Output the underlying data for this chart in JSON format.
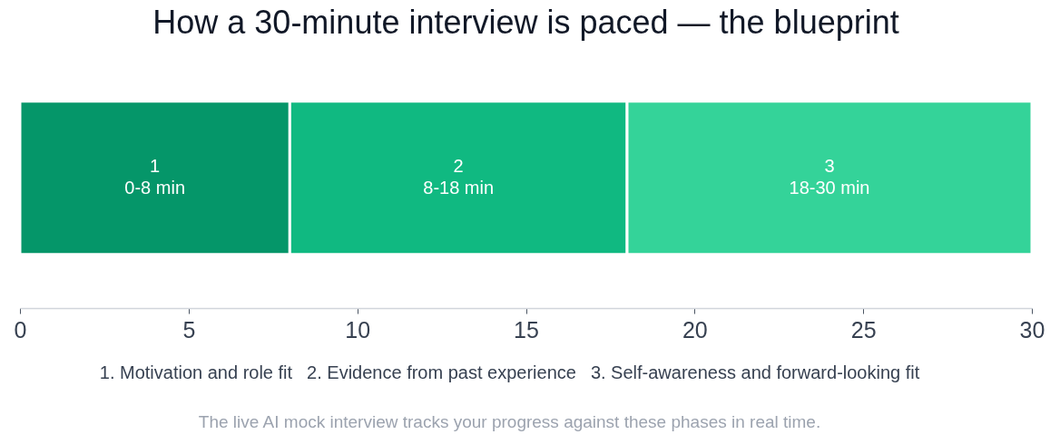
{
  "chart_data": {
    "type": "bar",
    "orientation": "horizontal",
    "stacked": true,
    "title": "How a 30-minute interview is paced — the blueprint",
    "categories": [
      null
    ],
    "series": [
      {
        "name": "1",
        "color": "#059669",
        "values": [
          8
        ],
        "value_labels": [
          "0-8 min"
        ]
      },
      {
        "name": "2",
        "color": "#10b981",
        "values": [
          10
        ],
        "value_labels": [
          "8-18 min"
        ]
      },
      {
        "name": "3",
        "color": "#34d399",
        "values": [
          12
        ],
        "value_labels": [
          "18-30 min"
        ]
      }
    ],
    "xlim": [
      0,
      30
    ],
    "xticks": [
      0,
      5,
      10,
      15,
      20,
      25,
      30
    ],
    "grid": false,
    "legend": false,
    "annotations": [
      "1. Motivation and role fit",
      "2. Evidence from past experience",
      "3. Self-awareness and forward-looking fit",
      "The live AI mock interview tracks your progress against these phases in real time."
    ]
  }
}
